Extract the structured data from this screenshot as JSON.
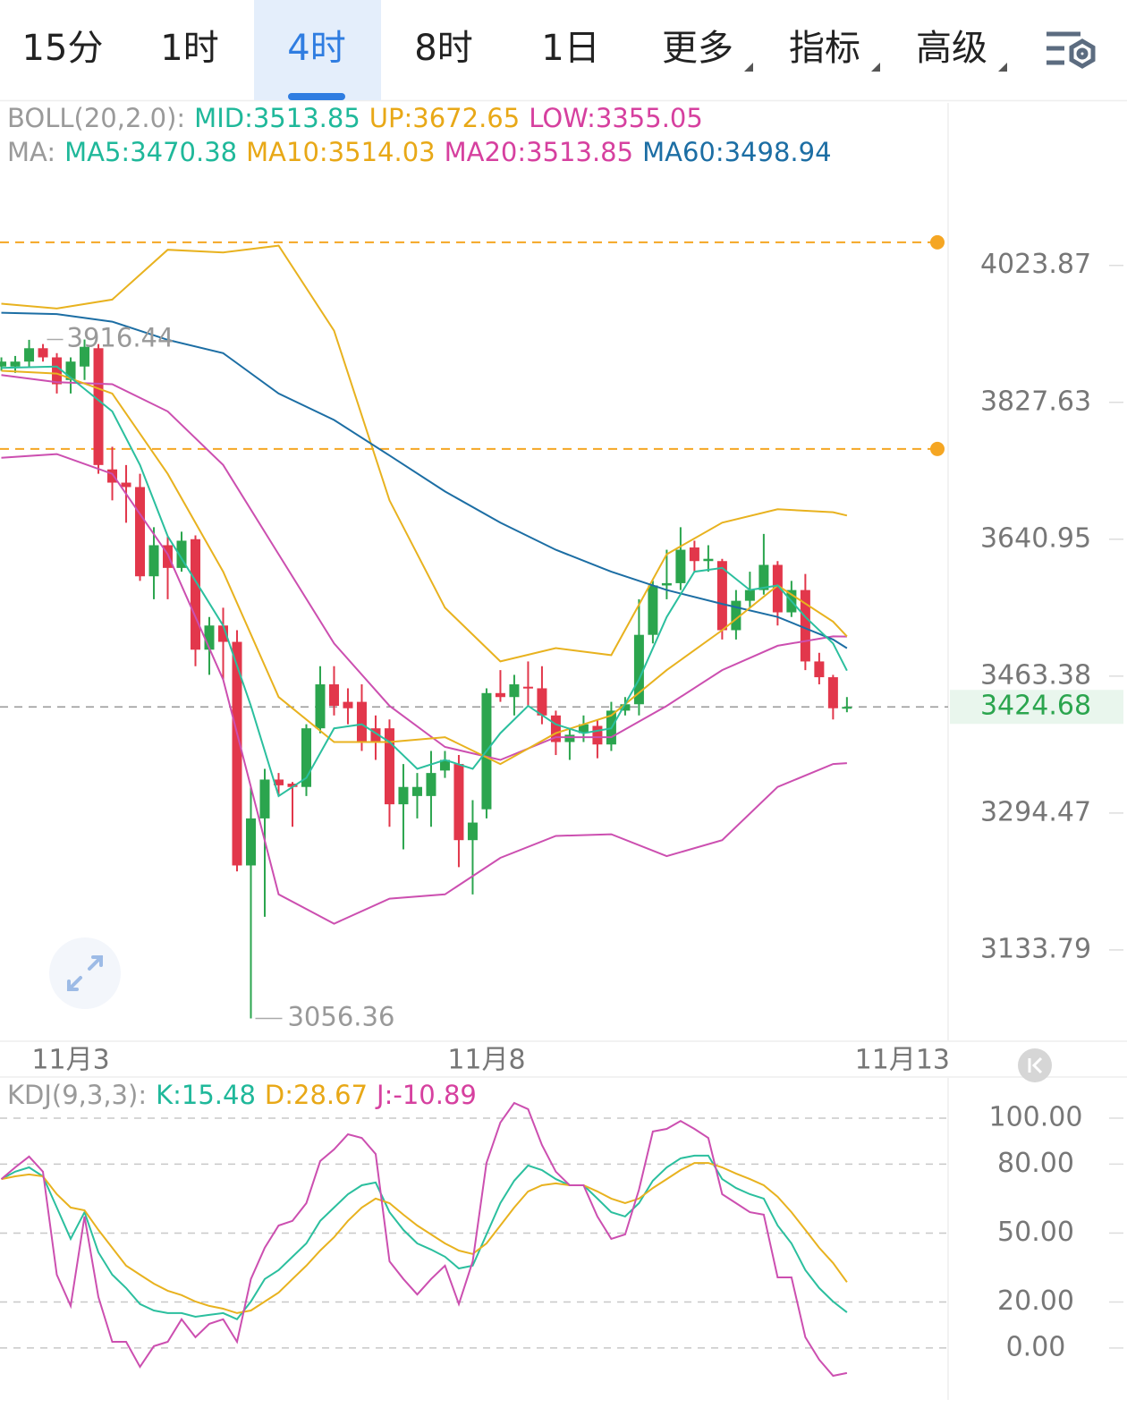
{
  "tabs": [
    {
      "label": "15分"
    },
    {
      "label": "1时"
    },
    {
      "label": "4时"
    },
    {
      "label": "8时"
    },
    {
      "label": "1日"
    },
    {
      "label": "更多",
      "menu": true
    },
    {
      "label": "指标",
      "menu": true
    },
    {
      "label": "高级",
      "menu": true
    }
  ],
  "active_tab": 2,
  "chart_data": [
    {
      "type": "candlestick",
      "log": true,
      "legend": [
        [
          {
            "text": "BOLL(20,2.0):",
            "color": "#9a9a9a"
          },
          {
            "text": "MID:3513.85",
            "color": "#1fb89a"
          },
          {
            "text": "UP:3672.65",
            "color": "#e8a817"
          },
          {
            "text": "LOW:3355.05",
            "color": "#d6409f"
          }
        ],
        [
          {
            "text": "MA:",
            "color": "#9a9a9a"
          },
          {
            "text": "MA5:3470.38",
            "color": "#1fb89a"
          },
          {
            "text": "MA10:3514.03",
            "color": "#e8a817"
          },
          {
            "text": "MA20:3513.85",
            "color": "#d6409f"
          },
          {
            "text": "MA60:3498.94",
            "color": "#1c6ea4"
          }
        ]
      ],
      "ylim": [
        3032,
        4270
      ],
      "yticks": [
        4023.87,
        3827.63,
        3640.95,
        3463.38,
        3294.47,
        3133.79
      ],
      "xlim": [
        -0.1,
        68.3
      ],
      "xticks": [
        {
          "value": 5,
          "label": "11月3"
        },
        {
          "value": 35,
          "label": "11月8"
        },
        {
          "value": 65,
          "label": "11月13"
        }
      ],
      "up_color": "#2ba54e",
      "down_color": "#e2374b",
      "open": [
        3878,
        3878,
        3885,
        3904,
        3891,
        3859,
        3878,
        3904,
        3735,
        3717,
        3711,
        3592,
        3633,
        3603,
        3641,
        3497,
        3528,
        3507,
        3232,
        3288,
        3335,
        3330,
        3326,
        3398,
        3453,
        3431,
        3431,
        3398,
        3398,
        3305,
        3315,
        3315,
        3346,
        3354,
        3262,
        3299,
        3442,
        3437,
        3450,
        3448,
        3414,
        3381,
        3392,
        3401,
        3378,
        3420,
        3428,
        3516,
        3580,
        3583,
        3630,
        3612,
        3612,
        3522,
        3560,
        3574,
        3607,
        3545,
        3574,
        3482,
        3462,
        3423
      ],
      "high": [
        3891,
        3893,
        3916,
        3910,
        3897,
        3891,
        3916.44,
        3910,
        3766,
        3741,
        3729,
        3657,
        3645,
        3651,
        3646,
        3539,
        3551,
        3522,
        3326,
        3348,
        3343,
        3332,
        3403,
        3476,
        3476,
        3448,
        3453,
        3414,
        3409,
        3354,
        3343,
        3370,
        3370,
        3365,
        3310,
        3448,
        3471,
        3465,
        3482,
        3476,
        3420,
        3398,
        3414,
        3409,
        3431,
        3437,
        3562,
        3586,
        3627,
        3657,
        3639,
        3633,
        3615,
        3574,
        3598,
        3648,
        3612,
        3586,
        3595,
        3493,
        3465,
        3437
      ],
      "low": [
        3872,
        3869,
        3878,
        3885,
        3840,
        3840,
        3859,
        3729,
        3693,
        3663,
        3586,
        3562,
        3562,
        3598,
        3476,
        3465,
        3459,
        3225,
        3056.36,
        3172,
        3315,
        3278,
        3315,
        3392,
        3414,
        3403,
        3370,
        3359,
        3278,
        3251,
        3288,
        3278,
        3337,
        3230,
        3198,
        3288,
        3431,
        3414,
        3426,
        3403,
        3365,
        3359,
        3381,
        3361,
        3370,
        3414,
        3414,
        3505,
        3562,
        3574,
        3598,
        3598,
        3510,
        3510,
        3551,
        3568,
        3528,
        3539,
        3471,
        3453,
        3409,
        3418
      ],
      "close": [
        3885,
        3885,
        3904,
        3891,
        3853,
        3885,
        3906,
        3741,
        3717,
        3711,
        3592,
        3633,
        3603,
        3639,
        3497,
        3528,
        3507,
        3232,
        3288,
        3335,
        3328,
        3326,
        3398,
        3453,
        3426,
        3423,
        3381,
        3381,
        3305,
        3326,
        3326,
        3343,
        3359,
        3262,
        3283,
        3442,
        3437,
        3453,
        3448,
        3414,
        3381,
        3390,
        3403,
        3378,
        3420,
        3428,
        3516,
        3580,
        3583,
        3627,
        3612,
        3615,
        3522,
        3560,
        3574,
        3607,
        3545,
        3574,
        3482,
        3462,
        3423,
        3424.68
      ],
      "lines": [
        {
          "color": "#e8b21f",
          "x": [
            0,
            4,
            8,
            12,
            16,
            20,
            24,
            28,
            32,
            36,
            40,
            44,
            48,
            52,
            56,
            60,
            61
          ],
          "values": [
            3968,
            3961,
            3974,
            4047,
            4043,
            4053,
            3929,
            3693,
            3551,
            3482,
            3499,
            3490,
            3621,
            3663,
            3681,
            3677,
            3672.65
          ]
        },
        {
          "color": "#cc4fb0",
          "x": [
            0,
            4,
            8,
            12,
            16,
            20,
            24,
            28,
            32,
            36,
            40,
            44,
            48,
            52,
            56,
            60,
            61
          ],
          "values": [
            3751,
            3756,
            3729,
            3621,
            3459,
            3198,
            3164,
            3193,
            3198,
            3241,
            3267,
            3269,
            3243,
            3262,
            3326,
            3354,
            3355.05
          ]
        },
        {
          "color": "#cc4fb0",
          "x": [
            0,
            4,
            8,
            12,
            16,
            20,
            24,
            28,
            32,
            36,
            40,
            44,
            48,
            52,
            56,
            60,
            61
          ],
          "values": [
            3866,
            3856,
            3853,
            3815,
            3741,
            3621,
            3505,
            3426,
            3375,
            3359,
            3387,
            3387,
            3426,
            3471,
            3502,
            3514,
            3513.85
          ]
        },
        {
          "color": "#1c6ea4",
          "x": [
            0,
            4,
            8,
            12,
            16,
            20,
            24,
            28,
            32,
            36,
            40,
            44,
            48,
            52,
            56,
            60,
            61
          ],
          "values": [
            3955,
            3953,
            3942,
            3916,
            3897,
            3840,
            3803,
            3754,
            3705,
            3663,
            3627,
            3598,
            3574,
            3556,
            3539,
            3510,
            3498.94
          ]
        },
        {
          "color": "#e8b21f",
          "x": [
            0,
            4,
            8,
            12,
            16,
            20,
            24,
            28,
            32,
            36,
            40,
            44,
            48,
            52,
            56,
            60,
            61
          ],
          "values": [
            3872,
            3868,
            3840,
            3729,
            3598,
            3437,
            3381,
            3381,
            3387,
            3354,
            3392,
            3414,
            3471,
            3522,
            3580,
            3533,
            3514.03
          ]
        },
        {
          "color": "#2bbf9e",
          "x": [
            0,
            4,
            8,
            10,
            12,
            14,
            16,
            18,
            20,
            22,
            24,
            26,
            28,
            30,
            32,
            34,
            36,
            38,
            40,
            42,
            44,
            46,
            48,
            50,
            52,
            54,
            56,
            58,
            60,
            61
          ],
          "values": [
            3876,
            3878,
            3815,
            3741,
            3645,
            3586,
            3528,
            3426,
            3315,
            3337,
            3398,
            3403,
            3381,
            3348,
            3359,
            3348,
            3392,
            3426,
            3403,
            3392,
            3398,
            3459,
            3539,
            3598,
            3603,
            3574,
            3580,
            3539,
            3505,
            3470.38
          ]
        }
      ],
      "hlines": [
        4058,
        3763
      ],
      "hline_color": "#f5a623"
    },
    {
      "type": "line",
      "legend": [
        [
          {
            "text": "KDJ(9,3,3):",
            "color": "#9a9a9a"
          },
          {
            "text": "K:15.48",
            "color": "#1fb89a"
          },
          {
            "text": "D:28.67",
            "color": "#e8a817"
          },
          {
            "text": "J:-10.89",
            "color": "#d6409f"
          }
        ]
      ],
      "ylim": [
        -22.6,
        117.5
      ],
      "yticks": [
        {
          "value": 100,
          "label": "100.00"
        },
        {
          "value": 80,
          "label": "80.00"
        },
        {
          "value": 50,
          "label": "50.00"
        },
        {
          "value": 20,
          "label": "20.00"
        },
        {
          "value": 0,
          "label": "0.00"
        }
      ],
      "xlim": [
        -0.1,
        68.3
      ],
      "grid": true,
      "series": [
        {
          "color": "#2bbf9e",
          "values": [
            73.5,
            76.7,
            78.6,
            74.7,
            61.1,
            47.5,
            59.1,
            41.6,
            31.9,
            26.1,
            19.1,
            16.3,
            15.2,
            15.2,
            13.6,
            14.4,
            15.2,
            12.5,
            20.2,
            30.0,
            33.9,
            39.7,
            45.5,
            55.3,
            61.1,
            66.9,
            70.8,
            72.0,
            59.1,
            51.4,
            45.5,
            42.8,
            39.7,
            34.6,
            35.8,
            49.4,
            63.0,
            72.8,
            79.4,
            77.4,
            73.5,
            70.8,
            70.8,
            65.0,
            59.1,
            57.2,
            63.0,
            72.8,
            78.6,
            82.5,
            83.7,
            83.7,
            73.5,
            69.6,
            66.9,
            65.0,
            53.3,
            45.5,
            33.9,
            26.1,
            20.2,
            15.48
          ]
        },
        {
          "color": "#e8b21f",
          "values": [
            73.5,
            74.7,
            75.5,
            74.7,
            66.9,
            61.1,
            59.9,
            51.4,
            43.6,
            35.8,
            31.9,
            28.0,
            24.9,
            23.0,
            20.2,
            18.3,
            17.1,
            15.2,
            16.3,
            20.2,
            24.1,
            30.0,
            35.8,
            42.4,
            48.2,
            55.3,
            61.1,
            65.0,
            63.0,
            58.0,
            53.3,
            49.4,
            45.5,
            42.4,
            40.9,
            45.5,
            53.3,
            61.1,
            68.1,
            70.8,
            71.6,
            70.8,
            70.8,
            68.1,
            65.0,
            63.0,
            65.0,
            69.6,
            73.5,
            77.4,
            80.5,
            80.5,
            78.6,
            75.9,
            73.5,
            70.8,
            65.8,
            59.1,
            51.4,
            43.6,
            37.0,
            28.67
          ]
        },
        {
          "color": "#cc4fb0",
          "values": [
            73.5,
            78.6,
            83.3,
            76.7,
            31.9,
            18.3,
            57.2,
            22.2,
            2.7,
            2.7,
            -8.2,
            0.8,
            2.7,
            12.5,
            4.7,
            10.5,
            12.5,
            2.7,
            30.0,
            43.6,
            53.3,
            55.3,
            63.0,
            81.3,
            86.4,
            93.0,
            91.4,
            84.4,
            37.7,
            30.0,
            23.3,
            30.0,
            35.8,
            19.1,
            37.7,
            80.5,
            98.1,
            106.6,
            103.9,
            88.3,
            76.7,
            70.8,
            70.8,
            57.2,
            47.5,
            49.4,
            68.9,
            94.2,
            95.3,
            98.8,
            95.3,
            91.4,
            66.9,
            63.0,
            59.1,
            58.0,
            30.7,
            30.7,
            4.7,
            -5.1,
            -12.1,
            -10.89
          ]
        }
      ]
    }
  ]
}
